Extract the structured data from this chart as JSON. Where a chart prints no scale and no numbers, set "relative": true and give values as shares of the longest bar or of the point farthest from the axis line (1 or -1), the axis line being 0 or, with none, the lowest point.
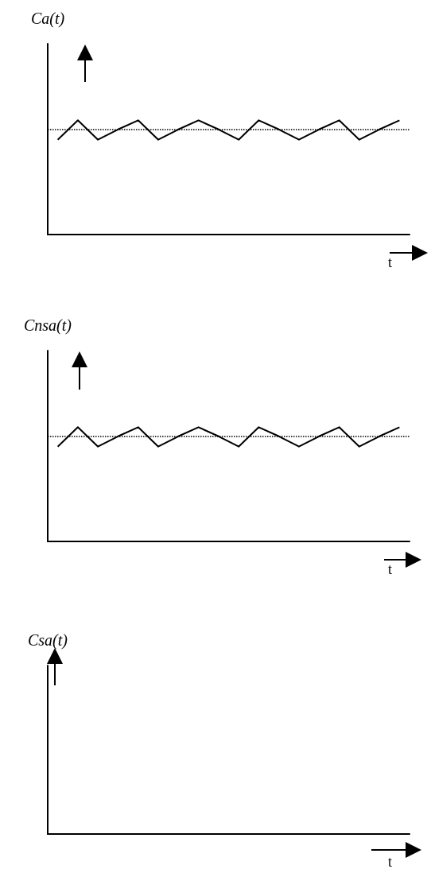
{
  "chart_data": [
    {
      "type": "line",
      "ylabel": "Ca(t)",
      "xlabel": "t",
      "relative": true,
      "categories": [
        null,
        null,
        null,
        null,
        null,
        null,
        null,
        null,
        null,
        null,
        null,
        null,
        null,
        null,
        null,
        null,
        null,
        null
      ],
      "series": [
        {
          "color": "#000000",
          "values": [
            0.83,
            1,
            0.83,
            0.92,
            1,
            0.83,
            0.92,
            1,
            0.92,
            0.83,
            1,
            0.92,
            0.83,
            0.92,
            1,
            0.83,
            0.92,
            1
          ]
        }
      ],
      "ref_lines": [
        {
          "axis": "y",
          "value": 0.92,
          "color": "#000000",
          "line_style": "dotted"
        }
      ],
      "marker": "none",
      "grid": false
    },
    {
      "type": "line",
      "ylabel": "Cnsa(t)",
      "xlabel": "t",
      "relative": true,
      "categories": [
        null,
        null,
        null,
        null,
        null,
        null,
        null,
        null,
        null,
        null,
        null,
        null,
        null,
        null,
        null,
        null,
        null,
        null
      ],
      "series": [
        {
          "color": "#000000",
          "values": [
            0.83,
            1,
            0.83,
            0.92,
            1,
            0.83,
            0.92,
            1,
            0.92,
            0.83,
            1,
            0.92,
            0.83,
            0.92,
            1,
            0.83,
            0.92,
            1
          ]
        }
      ],
      "ref_lines": [
        {
          "axis": "y",
          "value": 0.92,
          "color": "#000000",
          "line_style": "dotted"
        }
      ],
      "marker": "none",
      "grid": false
    },
    {
      "type": "other",
      "ylabel": "Csa(t)",
      "xlabel": "t"
    }
  ]
}
